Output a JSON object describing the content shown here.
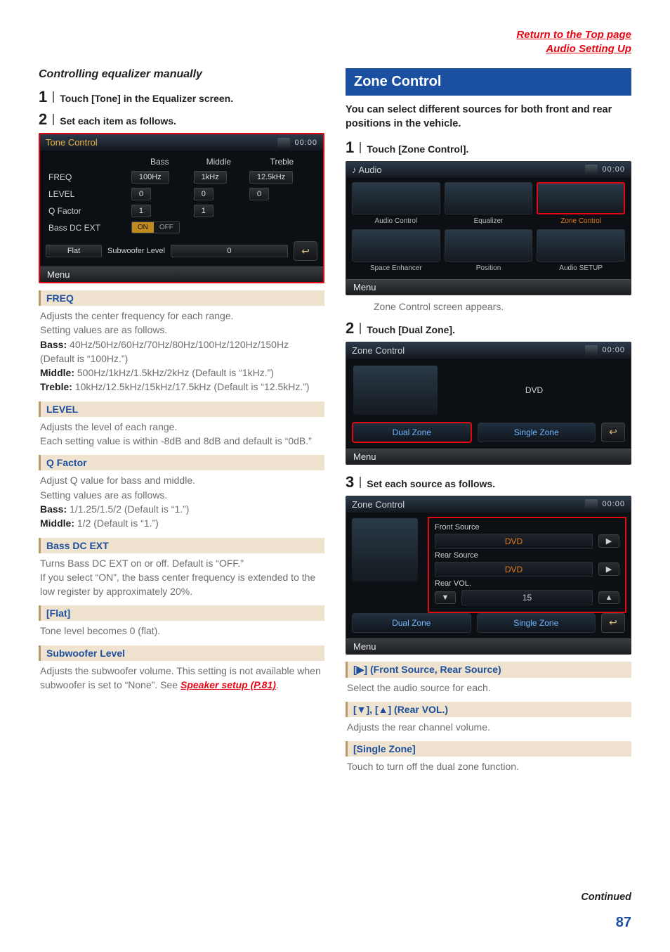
{
  "top_links": {
    "return": "Return to the Top page",
    "audio": "Audio Setting Up"
  },
  "left": {
    "subhead": "Controlling equalizer manually",
    "step1": {
      "num": "1",
      "text": "Touch [Tone] in the Equalizer screen."
    },
    "step2": {
      "num": "2",
      "text": "Set each item as follows."
    },
    "tone": {
      "title": "Tone Control",
      "clock": "00:00",
      "cols": [
        "Bass",
        "Middle",
        "Treble"
      ],
      "rows": {
        "freq": {
          "label": "FREQ",
          "vals": [
            "100Hz",
            "1kHz",
            "12.5kHz"
          ]
        },
        "level": {
          "label": "LEVEL",
          "vals": [
            "0",
            "0",
            "0"
          ]
        },
        "q": {
          "label": "Q Factor",
          "vals": [
            "1",
            "1"
          ]
        },
        "bass_dc": {
          "label": "Bass DC EXT",
          "on": "ON",
          "off": "OFF"
        }
      },
      "flat": "Flat",
      "sub_label": "Subwoofer Level",
      "sub_val": "0",
      "menu": "Menu"
    },
    "defs": [
      {
        "term": "FREQ",
        "body": "Adjusts the center frequency for each range.\nSetting values are as follows.",
        "lines": [
          {
            "b": "Bass:",
            "t": " 40Hz/50Hz/60Hz/70Hz/80Hz/100Hz/120Hz/150Hz (Default is “100Hz.”)"
          },
          {
            "b": "Middle:",
            "t": " 500Hz/1kHz/1.5kHz/2kHz (Default is “1kHz.”)"
          },
          {
            "b": "Treble:",
            "t": " 10kHz/12.5kHz/15kHz/17.5kHz (Default is “12.5kHz.”)"
          }
        ]
      },
      {
        "term": "LEVEL",
        "body": "Adjusts the level of each range.\nEach setting value is within -8dB and 8dB and default is “0dB.”"
      },
      {
        "term": "Q Factor",
        "body": "Adjust Q value for bass and middle.\nSetting values are as follows.",
        "lines": [
          {
            "b": "Bass:",
            "t": " 1/1.25/1.5/2 (Default is “1.”)"
          },
          {
            "b": "Middle:",
            "t": " 1/2 (Default is “1.”)"
          }
        ]
      },
      {
        "term": "Bass DC EXT",
        "body": "Turns Bass DC EXT on or off. Default is “OFF.”\nIf you select “ON”, the bass center frequency is extended to the low register by approximately 20%."
      },
      {
        "term": "[Flat]",
        "body": "Tone level becomes 0 (flat)."
      },
      {
        "term": "Subwoofer Level",
        "body": "Adjusts the subwoofer volume. This setting is not available when subwoofer is set to “None”. See ",
        "link": "Speaker setup (P.81)",
        "after": "."
      }
    ]
  },
  "right": {
    "section": "Zone Control",
    "intro": "You can select different sources for both front and rear positions in the vehicle.",
    "step1": {
      "num": "1",
      "text": "Touch [Zone Control]."
    },
    "audio_shot": {
      "title": "Audio",
      "clock": "00:00",
      "menu": "Menu",
      "cells": [
        {
          "label": "Audio Control"
        },
        {
          "label": "Equalizer"
        },
        {
          "label": "Zone Control",
          "sel": true
        },
        {
          "label": "Space Enhancer"
        },
        {
          "label": "Position"
        },
        {
          "label": "Audio SETUP"
        }
      ]
    },
    "caption": "Zone Control screen appears.",
    "step2": {
      "num": "2",
      "text": "Touch [Dual Zone]."
    },
    "zc1": {
      "title": "Zone Control",
      "clock": "00:00",
      "dvd": "DVD",
      "dual": "Dual Zone",
      "single": "Single Zone",
      "menu": "Menu"
    },
    "step3": {
      "num": "3",
      "text": "Set each source as follows."
    },
    "zc2": {
      "title": "Zone Control",
      "clock": "00:00",
      "menu": "Menu",
      "front_label": "Front Source",
      "front_val": "DVD",
      "rear_label": "Rear Source",
      "rear_val": "DVD",
      "vol_label": "Rear VOL.",
      "vol_val": "15",
      "dual": "Dual Zone",
      "single": "Single Zone"
    },
    "defs": [
      {
        "term": "[▶] (Front Source, Rear Source)",
        "body": "Select the audio source for each."
      },
      {
        "term": "[▼], [▲] (Rear VOL.)",
        "body": "Adjusts the rear channel volume."
      },
      {
        "term": "[Single Zone]",
        "body": "Touch to turn off the dual zone function."
      }
    ]
  },
  "continued": "Continued",
  "page_num": "87",
  "colors": {
    "accent": "#e30613",
    "blue": "#1b4fa0",
    "beige": "#efe3cf"
  }
}
